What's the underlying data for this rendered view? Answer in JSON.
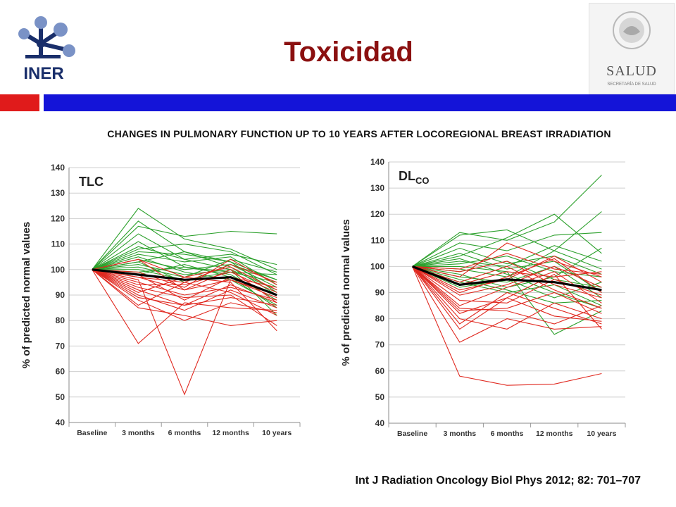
{
  "header": {
    "title": "Toxicidad",
    "logo_left_text": "INER",
    "logo_right_text": "SALUD",
    "logo_right_subtext": "SECRETARÍA DE SALUD",
    "accent_red": "#e01b1b",
    "accent_blue": "#1414d8",
    "title_color": "#8b1010"
  },
  "subtitle": "CHANGES IN PULMONARY FUNCTION UP TO 10 YEARS AFTER LOCOREGIONAL  BREAST IRRADIATION",
  "citation": "Int J Radiation Oncology Biol Phys 2012;  82: 701–707",
  "chart_data": [
    {
      "type": "line",
      "title": "TLC",
      "ylabel": "% of predicted normal values",
      "categories": [
        "Baseline",
        "3 months",
        "6 months",
        "12 months",
        "10 years"
      ],
      "ylim": [
        40,
        140
      ],
      "yticks": [
        40,
        50,
        60,
        70,
        80,
        90,
        100,
        110,
        120,
        130,
        140
      ],
      "grid": true,
      "series_colors": {
        "increase": "#2ca02c",
        "decrease": "#e0281f",
        "mean": "#000000"
      },
      "mean": [
        100,
        98,
        96,
        97,
        90
      ],
      "green_series": [
        [
          100,
          124,
          112,
          108,
          100
        ],
        [
          100,
          119,
          107,
          103,
          96
        ],
        [
          100,
          117,
          113,
          115,
          114
        ],
        [
          100,
          114,
          104,
          106,
          102
        ],
        [
          100,
          111,
          101,
          99,
          95
        ],
        [
          100,
          108,
          110,
          107,
          98
        ],
        [
          100,
          106,
          103,
          105,
          94
        ],
        [
          100,
          104,
          100,
          102,
          96
        ],
        [
          100,
          102,
          98,
          100,
          92
        ],
        [
          100,
          103,
          107,
          101,
          90
        ],
        [
          100,
          100,
          96,
          99,
          98
        ],
        [
          100,
          99,
          101,
          98,
          88
        ],
        [
          100,
          101,
          97,
          104,
          99
        ],
        [
          100,
          105,
          99,
          96,
          86
        ],
        [
          100,
          107,
          106,
          103,
          91
        ],
        [
          100,
          98,
          102,
          97,
          85
        ],
        [
          100,
          109,
          104,
          100,
          82
        ],
        [
          100,
          103,
          95,
          102,
          93
        ]
      ],
      "red_series": [
        [
          100,
          104,
          97,
          101,
          92
        ],
        [
          100,
          97,
          92,
          96,
          90
        ],
        [
          100,
          95,
          90,
          93,
          88
        ],
        [
          100,
          92,
          86,
          94,
          87
        ],
        [
          100,
          90,
          84,
          92,
          85
        ],
        [
          100,
          88,
          80,
          87,
          83
        ],
        [
          100,
          85,
          82,
          78,
          80
        ],
        [
          100,
          94,
          94,
          99,
          91
        ],
        [
          100,
          96,
          51,
          96,
          89
        ],
        [
          100,
          71,
          87,
          85,
          84
        ],
        [
          100,
          99,
          93,
          104,
          94
        ],
        [
          100,
          93,
          89,
          90,
          78
        ],
        [
          100,
          91,
          97,
          95,
          76
        ],
        [
          100,
          98,
          88,
          97,
          93
        ],
        [
          100,
          104,
          92,
          100,
          87
        ],
        [
          100,
          86,
          95,
          91,
          82
        ],
        [
          100,
          89,
          86,
          89,
          86
        ],
        [
          100,
          97,
          95,
          102,
          95
        ]
      ]
    },
    {
      "type": "line",
      "title": "DL",
      "title_sub": "CO",
      "ylabel": "% of predicted normal values",
      "categories": [
        "Baseline",
        "3 months",
        "6 months",
        "12 months",
        "10 years"
      ],
      "ylim": [
        40,
        140
      ],
      "yticks": [
        40,
        50,
        60,
        70,
        80,
        90,
        100,
        110,
        120,
        130,
        140
      ],
      "grid": true,
      "series_colors": {
        "increase": "#2ca02c",
        "decrease": "#e0281f",
        "mean": "#000000"
      },
      "mean": [
        100,
        93,
        95,
        94,
        91
      ],
      "green_series": [
        [
          100,
          113,
          110,
          117,
          135
        ],
        [
          100,
          112,
          114,
          106,
          121
        ],
        [
          100,
          109,
          106,
          112,
          113
        ],
        [
          100,
          104,
          111,
          120,
          105
        ],
        [
          100,
          102,
          100,
          108,
          102
        ],
        [
          100,
          101,
          104,
          98,
          96
        ],
        [
          100,
          99,
          96,
          106,
          99
        ],
        [
          100,
          98,
          102,
          95,
          92
        ],
        [
          100,
          96,
          94,
          100,
          88
        ],
        [
          100,
          103,
          97,
          90,
          84
        ],
        [
          100,
          95,
          91,
          86,
          87
        ],
        [
          100,
          100,
          98,
          74,
          83
        ],
        [
          100,
          97,
          92,
          96,
          107
        ],
        [
          100,
          105,
          99,
          102,
          90
        ],
        [
          100,
          94,
          90,
          93,
          85
        ],
        [
          100,
          107,
          101,
          104,
          97
        ],
        [
          100,
          92,
          95,
          88,
          94
        ]
      ],
      "red_series": [
        [
          100,
          58,
          54.5,
          55,
          59
        ],
        [
          100,
          71,
          80,
          76,
          77
        ],
        [
          100,
          76,
          88,
          81,
          79
        ],
        [
          100,
          80,
          76,
          86,
          80
        ],
        [
          100,
          83,
          84,
          90,
          82
        ],
        [
          100,
          85,
          92,
          98,
          86
        ],
        [
          100,
          87,
          86,
          95,
          89
        ],
        [
          100,
          89,
          93,
          100,
          92
        ],
        [
          100,
          91,
          95,
          104,
          94
        ],
        [
          100,
          93,
          98,
          96,
          98
        ],
        [
          100,
          96,
          109,
          102,
          96
        ],
        [
          100,
          98,
          102,
          93,
          88
        ],
        [
          100,
          99,
          105,
          99,
          97
        ],
        [
          100,
          94,
          100,
          91,
          84
        ],
        [
          100,
          82,
          88,
          97,
          76
        ],
        [
          100,
          78,
          90,
          84,
          78
        ],
        [
          100,
          90,
          96,
          103,
          90
        ],
        [
          100,
          84,
          83,
          78,
          85
        ]
      ]
    }
  ]
}
